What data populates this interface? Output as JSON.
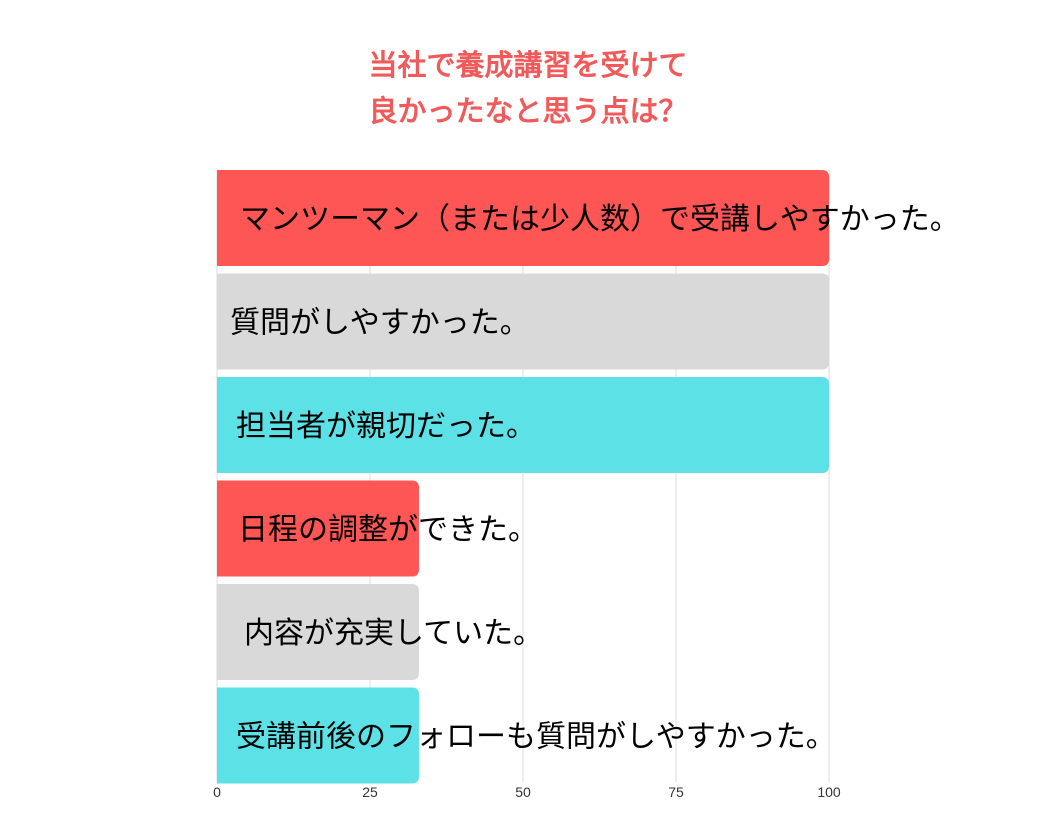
{
  "chart_data": {
    "type": "bar",
    "orientation": "horizontal",
    "title_lines": [
      "当社で養成講習を受けて",
      "良かったなと思う点は？"
    ],
    "categories": [
      "マンツーマン（または少人数）で受講しやすかった。",
      "質問がしやすかった。",
      "担当者が親切だった。",
      "日程の調整ができた。",
      "内容が充実していた。",
      "受講前後のフォローも質問がしやすかった。"
    ],
    "values": [
      100,
      100,
      100,
      33,
      33,
      33
    ],
    "bar_colors": [
      "#fe5555",
      "#d9d9d9",
      "#5ce1e6",
      "#fe5555",
      "#d9d9d9",
      "#5ce1e6"
    ],
    "xlim": [
      0,
      100
    ],
    "xticks": [
      0,
      25,
      50,
      75,
      100
    ],
    "grid": true,
    "legend": "none",
    "xlabel": "",
    "ylabel": ""
  },
  "colors": {
    "title": "#f15a5a",
    "grid": "#dddddd"
  }
}
